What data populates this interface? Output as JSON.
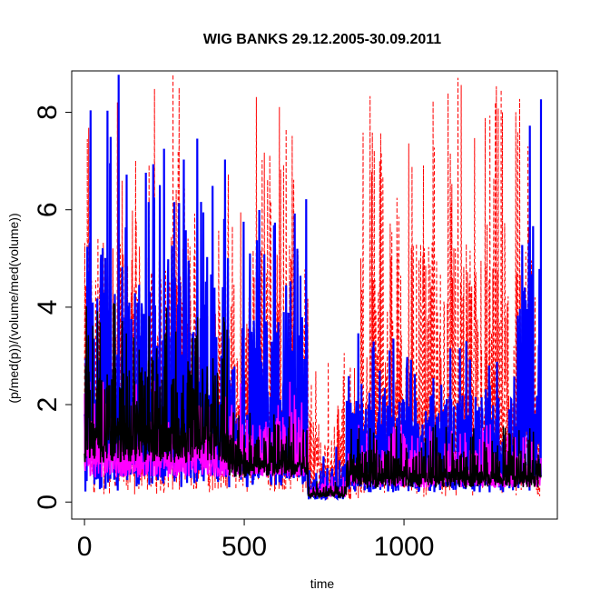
{
  "chart_data": {
    "type": "line",
    "title": "WIG BANKS 29.12.2005-30.09.2011",
    "xlabel": "time",
    "ylabel": "(p/med(p))/(volume/med(volume))",
    "xlim": [
      -40,
      1480
    ],
    "ylim": [
      -0.35,
      8.85
    ],
    "xticks": [
      0,
      500,
      1000
    ],
    "xtick_labels": [
      "0",
      "500",
      "1000"
    ],
    "yticks": [
      0,
      2,
      4,
      6,
      8
    ],
    "ytick_labels": [
      "0",
      "2",
      "4",
      "6",
      "8"
    ],
    "n_points": 1430,
    "grid": false,
    "legend": "none",
    "series": [
      {
        "color": "#ff0000",
        "style": "dashed",
        "segments": [
          {
            "x": [
              0,
              300
            ],
            "low": 0.15,
            "high": 8.8
          },
          {
            "x": [
              300,
              520
            ],
            "low": 0.2,
            "high": 7.0
          },
          {
            "x": [
              520,
              700
            ],
            "low": 0.2,
            "high": 8.8
          },
          {
            "x": [
              700,
              860
            ],
            "low": 0.05,
            "high": 3.3
          },
          {
            "x": [
              860,
              1430
            ],
            "low": 0.1,
            "high": 8.8
          }
        ]
      },
      {
        "color": "#0000ff",
        "style": "solid",
        "segments": [
          {
            "x": [
              0,
              120
            ],
            "low": 0.2,
            "high": 8.8
          },
          {
            "x": [
              120,
              450
            ],
            "low": 0.3,
            "high": 7.5
          },
          {
            "x": [
              450,
              700
            ],
            "low": 0.3,
            "high": 6.3
          },
          {
            "x": [
              700,
              820
            ],
            "low": 0.05,
            "high": 1.2
          },
          {
            "x": [
              820,
              1350
            ],
            "low": 0.2,
            "high": 3.5
          },
          {
            "x": [
              1350,
              1430
            ],
            "low": 0.2,
            "high": 8.8
          }
        ]
      },
      {
        "color": "#ff00ff",
        "style": "solid",
        "segments": [
          {
            "x": [
              0,
              700
            ],
            "low": 0.5,
            "high": 2.5
          },
          {
            "x": [
              700,
              820
            ],
            "low": 0.1,
            "high": 0.6
          },
          {
            "x": [
              820,
              1430
            ],
            "low": 0.3,
            "high": 1.6
          }
        ]
      },
      {
        "color": "#000000",
        "style": "solid",
        "segments": [
          {
            "x": [
              0,
              450
            ],
            "low": 0.8,
            "high": 4.1
          },
          {
            "x": [
              450,
              700
            ],
            "low": 0.5,
            "high": 2.0
          },
          {
            "x": [
              700,
              820
            ],
            "low": 0.1,
            "high": 0.5
          },
          {
            "x": [
              820,
              1430
            ],
            "low": 0.3,
            "high": 1.6
          }
        ]
      }
    ]
  }
}
